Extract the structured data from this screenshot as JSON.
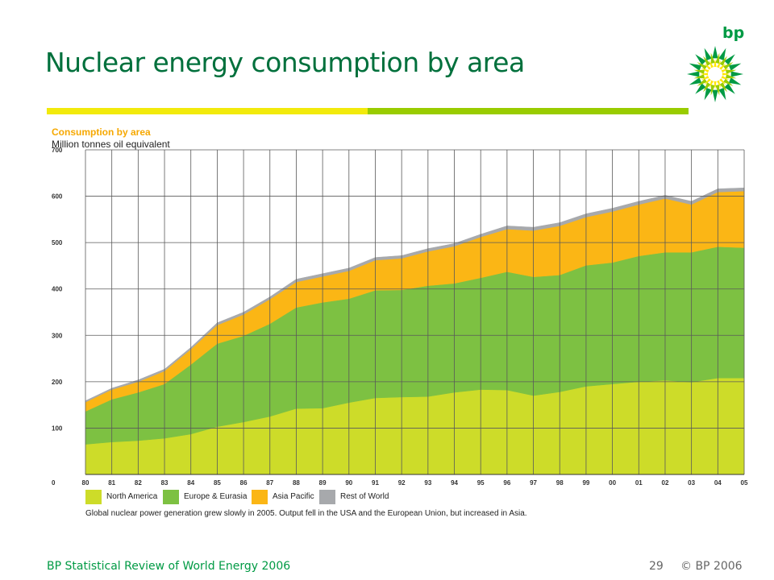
{
  "slide": {
    "title": "Nuclear energy consumption by area",
    "logo_text": "bp",
    "footer_left": "BP Statistical Review of World Energy 2006",
    "page_number": "29",
    "copyright": "© BP 2006",
    "colors": {
      "title": "#00703c",
      "accent_yellow": "#f2ea0c",
      "accent_green": "#99cc00"
    }
  },
  "chart_data": {
    "type": "area",
    "stacked": true,
    "title": "Consumption by area",
    "ylabel": "Million tonnes oil equivalent",
    "xlabel": "",
    "ylim": [
      0,
      700
    ],
    "yticks": [
      "0",
      "100",
      "200",
      "300",
      "400",
      "500",
      "600",
      "700"
    ],
    "categories": [
      "80",
      "81",
      "82",
      "83",
      "84",
      "85",
      "86",
      "87",
      "88",
      "89",
      "90",
      "91",
      "92",
      "93",
      "94",
      "95",
      "96",
      "97",
      "98",
      "99",
      "00",
      "01",
      "02",
      "03",
      "04",
      "05"
    ],
    "grid": true,
    "legend_position": "bottom",
    "series": [
      {
        "name": "North America",
        "color": "#cddc29",
        "values": [
          65,
          70,
          73,
          78,
          87,
          103,
          113,
          125,
          142,
          143,
          155,
          165,
          167,
          168,
          177,
          183,
          182,
          170,
          178,
          190,
          195,
          200,
          203,
          199,
          208,
          208
        ]
      },
      {
        "name": "Europe & Eurasia",
        "color": "#7dc142",
        "values": [
          71,
          92,
          104,
          117,
          150,
          179,
          186,
          200,
          218,
          228,
          224,
          232,
          231,
          239,
          235,
          241,
          255,
          256,
          252,
          261,
          262,
          271,
          276,
          280,
          283,
          281
        ]
      },
      {
        "name": "Asia Pacific",
        "color": "#fbb615",
        "values": [
          20,
          21,
          23,
          28,
          33,
          40,
          46,
          53,
          55,
          56,
          60,
          65,
          68,
          74,
          80,
          88,
          92,
          100,
          106,
          104,
          110,
          111,
          116,
          103,
          118,
          122
        ]
      },
      {
        "name": "Rest of World",
        "color": "#a7a9ac",
        "values": [
          3,
          3,
          4,
          4,
          4,
          5,
          5,
          5,
          6,
          6,
          6,
          6,
          6,
          6,
          6,
          6,
          7,
          7,
          7,
          7,
          7,
          7,
          7,
          7,
          7,
          7
        ]
      }
    ],
    "caption": "Global nuclear power generation grew slowly in 2005. Output fell in the USA and the European Union, but increased in Asia."
  }
}
